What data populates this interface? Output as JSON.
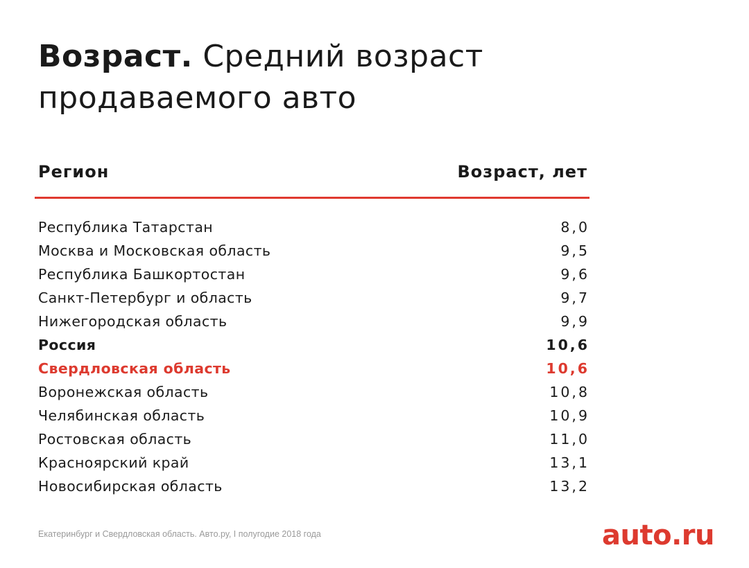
{
  "title": {
    "bold": "Возраст.",
    "line1_rest": " Средний возраст",
    "line2": "продаваемого авто"
  },
  "header": {
    "region": "Регион",
    "age": "Возраст, лет"
  },
  "colors": {
    "accent": "#dd3a2f",
    "rule": "#e0392f",
    "text": "#1c1c1c",
    "footer": "#9a9a9a"
  },
  "chart_data": {
    "type": "table",
    "title": "Возраст. Средний возраст продаваемого авто",
    "columns": [
      "Регион",
      "Возраст, лет"
    ],
    "rows": [
      {
        "region": "Республика Татарстан",
        "age": "8,0",
        "value": 8.0,
        "style": "normal"
      },
      {
        "region": "Москва и Московская область",
        "age": "9,5",
        "value": 9.5,
        "style": "normal"
      },
      {
        "region": "Республика Башкортостан",
        "age": "9,6",
        "value": 9.6,
        "style": "normal"
      },
      {
        "region": "Санкт-Петербург и область",
        "age": "9,7",
        "value": 9.7,
        "style": "normal"
      },
      {
        "region": "Нижегородская область",
        "age": "9,9",
        "value": 9.9,
        "style": "normal"
      },
      {
        "region": "Россия",
        "age": "10,6",
        "value": 10.6,
        "style": "bold"
      },
      {
        "region": "Свердловская область",
        "age": "10,6",
        "value": 10.6,
        "style": "accent"
      },
      {
        "region": "Воронежская область",
        "age": "10,8",
        "value": 10.8,
        "style": "normal"
      },
      {
        "region": "Челябинская область",
        "age": "10,9",
        "value": 10.9,
        "style": "normal"
      },
      {
        "region": "Ростовская область",
        "age": "11,0",
        "value": 11.0,
        "style": "normal"
      },
      {
        "region": "Красноярский край",
        "age": "13,1",
        "value": 13.1,
        "style": "normal"
      },
      {
        "region": "Новосибирская область",
        "age": "13,2",
        "value": 13.2,
        "style": "normal"
      }
    ]
  },
  "footer": {
    "source": "Екатеринбург и Свердловская область. Авто.ру, I полугодие 2018 года"
  },
  "logo": {
    "text": "auto.ru"
  }
}
